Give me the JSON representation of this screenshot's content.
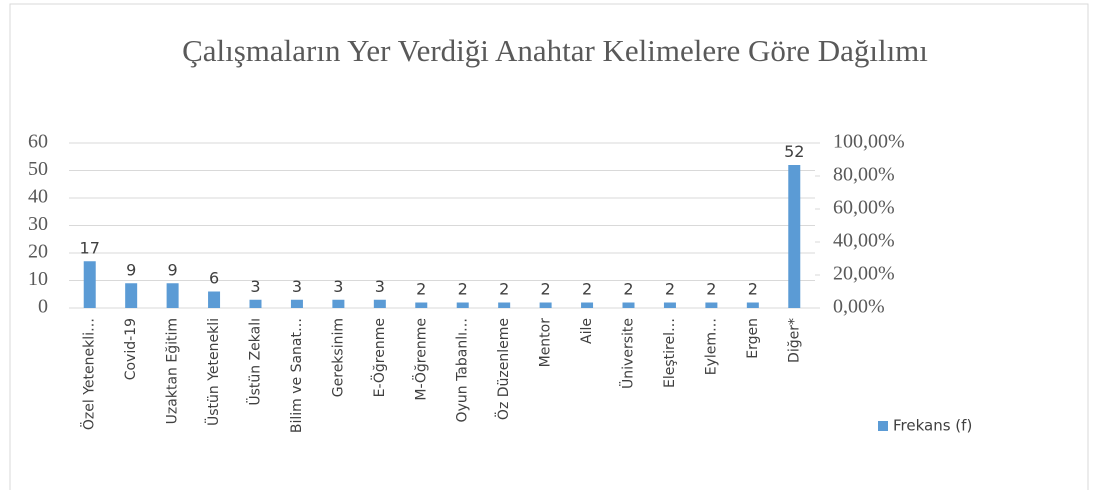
{
  "chart_data": {
    "type": "bar",
    "title": "Çalışmaların Yer Verdiği Anahtar Kelimelere Göre Dağılımı",
    "categories": [
      "Özel Yetenekli…",
      "Covid-19",
      "Uzaktan Eğitim",
      "Üstün Yetenekli",
      "Üstün Zekalı",
      "Bilim ve Sanat…",
      "Gereksinim",
      "E-Öğrenme",
      "M-Öğrenme",
      "Oyun Tabanlı…",
      "Öz Düzenleme",
      "Mentor",
      "Aile",
      "Üniversite",
      "Eleştirel…",
      "Eylem…",
      "Ergen",
      "Diğer*"
    ],
    "series": [
      {
        "name": "Frekans (f)",
        "color": "#5b9bd5",
        "values": [
          17,
          9,
          9,
          6,
          3,
          3,
          3,
          3,
          2,
          2,
          2,
          2,
          2,
          2,
          2,
          2,
          2,
          52
        ]
      }
    ],
    "ylim": [
      0,
      60
    ],
    "yticks": [
      0,
      10,
      20,
      30,
      40,
      50,
      60
    ],
    "y2lim": [
      0,
      100
    ],
    "y2ticks": [
      {
        "value": 0,
        "label": "0,00%"
      },
      {
        "value": 20,
        "label": "20,00%"
      },
      {
        "value": 40,
        "label": "40,00%"
      },
      {
        "value": 60,
        "label": "60,00%"
      },
      {
        "value": 80,
        "label": "80,00%"
      },
      {
        "value": 100,
        "label": "100,00%"
      }
    ],
    "grid": true,
    "legend": "right"
  }
}
